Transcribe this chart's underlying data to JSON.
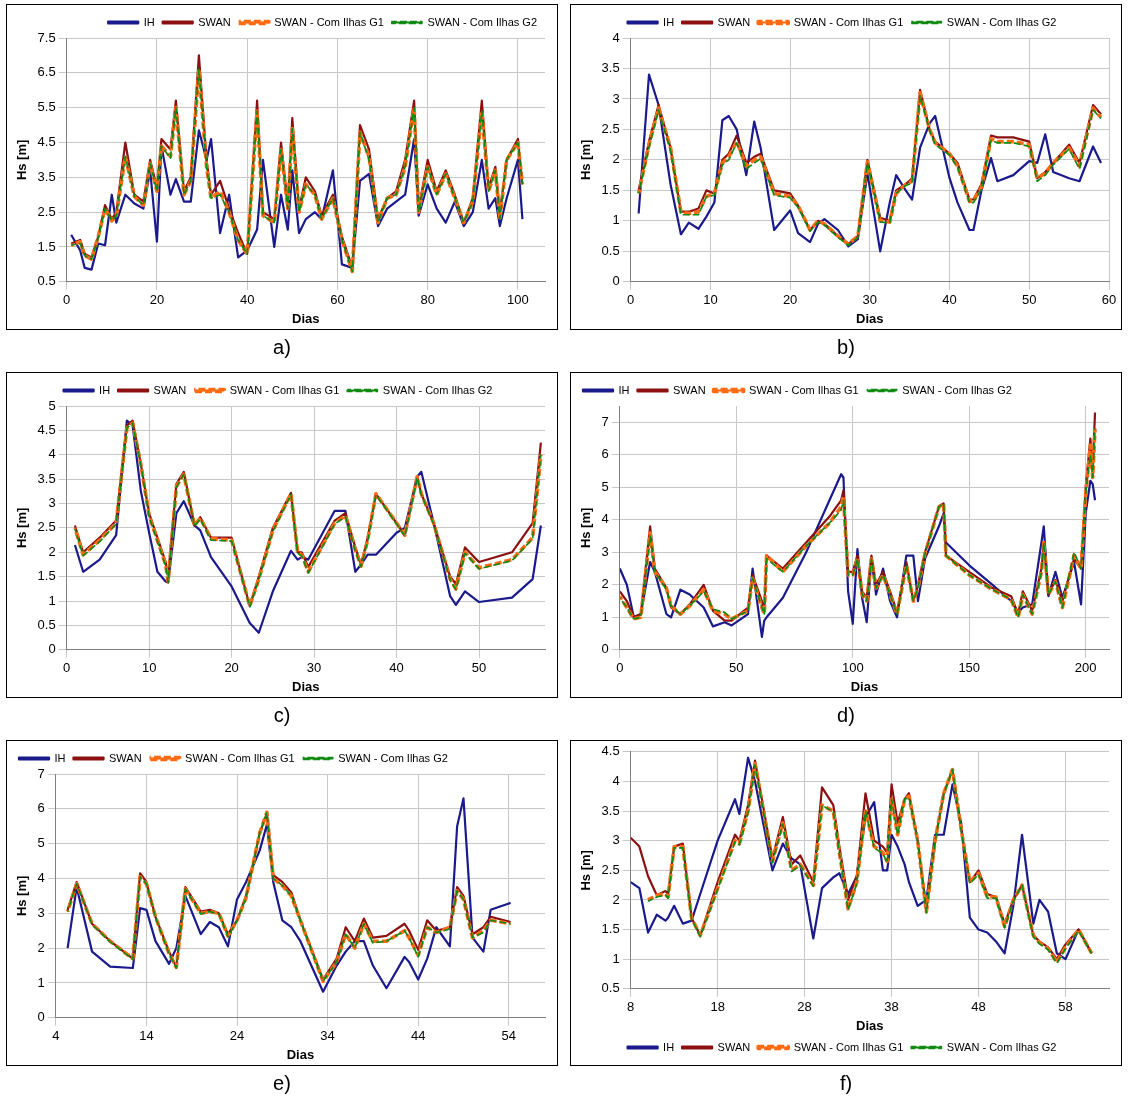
{
  "chart_data": [
    {
      "type": "line",
      "xlabel": "Dias",
      "ylabel": "Hs [m]",
      "annotations": [
        "a)"
      ],
      "legend": "top right",
      "grid": true,
      "marker": "none",
      "xlim": [
        0,
        106
      ],
      "xticks": [
        0,
        20,
        40,
        60,
        80,
        100
      ],
      "ylim": [
        0.5,
        7.5
      ],
      "yticks": [
        0.5,
        1.5,
        2.5,
        3.5,
        4.5,
        5.5,
        6.5,
        7.5
      ],
      "x": [
        1,
        3,
        4,
        5.5,
        7,
        8.5,
        10,
        11,
        13,
        15,
        17,
        18.5,
        20,
        21,
        23,
        24.2,
        26,
        27.5,
        29.3,
        31,
        32,
        34,
        36,
        38,
        40,
        42.2,
        43.5,
        46,
        47.5,
        49,
        50,
        51.5,
        53,
        55,
        56.5,
        59,
        61,
        63.3,
        65,
        67,
        69,
        71,
        73,
        75,
        77,
        78,
        80,
        82,
        84,
        86,
        88,
        90,
        92,
        93.5,
        95,
        96,
        97.5,
        100,
        101
      ],
      "series": [
        {
          "name": "IH",
          "color": "#1a1a8c",
          "line_style": "solid",
          "values": [
            1.85,
            1.4,
            0.9,
            0.85,
            1.6,
            1.55,
            3.0,
            2.2,
            3.0,
            2.75,
            2.6,
            3.7,
            1.65,
            4.4,
            3.0,
            3.45,
            2.8,
            2.8,
            4.85,
            4.0,
            4.6,
            1.9,
            3.0,
            1.2,
            1.4,
            2.0,
            4.0,
            1.5,
            3.0,
            2.0,
            3.7,
            1.9,
            2.3,
            2.5,
            2.3,
            3.7,
            1.0,
            0.9,
            3.4,
            3.6,
            2.1,
            2.6,
            2.8,
            3.0,
            4.6,
            2.4,
            3.3,
            2.6,
            2.2,
            2.8,
            2.1,
            2.5,
            4.0,
            2.6,
            2.9,
            2.1,
            2.9,
            4.0,
            2.3
          ]
        },
        {
          "name": "SWAN",
          "color": "#8b1010",
          "line_style": "solid",
          "values": [
            1.6,
            1.7,
            1.3,
            1.2,
            1.8,
            2.7,
            2.3,
            2.5,
            4.5,
            3.0,
            2.8,
            4.0,
            3.2,
            4.6,
            4.3,
            5.7,
            3.1,
            3.5,
            7.0,
            4.0,
            3.0,
            3.4,
            2.6,
            1.9,
            1.3,
            5.7,
            2.5,
            2.3,
            4.5,
            2.7,
            5.2,
            2.6,
            3.5,
            3.1,
            2.4,
            3.0,
            1.8,
            0.9,
            5.0,
            4.3,
            2.3,
            2.9,
            3.1,
            4.0,
            5.7,
            2.6,
            4.0,
            3.1,
            3.7,
            3.0,
            2.2,
            2.9,
            5.7,
            3.2,
            3.8,
            2.5,
            4.0,
            4.6,
            3.3
          ]
        },
        {
          "name": "SWAN - Com Ilhas G1",
          "color": "#ff6a13",
          "line_style": "dashed",
          "values": [
            1.55,
            1.65,
            1.25,
            1.15,
            1.8,
            2.6,
            2.25,
            2.4,
            4.1,
            2.95,
            2.7,
            3.9,
            3.1,
            4.4,
            4.1,
            5.5,
            3.0,
            3.4,
            6.6,
            3.8,
            2.9,
            3.1,
            2.5,
            1.7,
            1.3,
            5.4,
            2.4,
            2.2,
            4.3,
            2.6,
            4.9,
            2.5,
            3.3,
            3.0,
            2.3,
            2.9,
            1.7,
            0.8,
            4.8,
            4.1,
            2.2,
            2.9,
            3.0,
            3.8,
            5.5,
            2.5,
            3.8,
            3.0,
            3.6,
            2.9,
            2.2,
            2.8,
            5.4,
            3.1,
            3.7,
            2.3,
            4.0,
            4.5,
            3.3
          ]
        },
        {
          "name": "SWAN - Com Ilhas G2",
          "color": "#118a11",
          "line_style": "dashed",
          "values": [
            1.55,
            1.6,
            1.25,
            1.15,
            1.75,
            2.6,
            2.25,
            2.4,
            4.1,
            2.95,
            2.7,
            3.9,
            3.1,
            4.4,
            4.05,
            5.5,
            3.0,
            3.4,
            6.6,
            3.8,
            2.9,
            3.0,
            2.5,
            1.7,
            1.3,
            5.4,
            2.4,
            2.2,
            4.3,
            2.6,
            4.9,
            2.5,
            3.3,
            3.0,
            2.3,
            2.9,
            1.7,
            0.8,
            4.8,
            4.0,
            2.2,
            2.9,
            3.0,
            3.8,
            5.5,
            2.5,
            3.8,
            3.0,
            3.6,
            2.9,
            2.2,
            2.8,
            5.4,
            3.1,
            3.7,
            2.3,
            4.0,
            4.5,
            3.3
          ]
        }
      ]
    },
    {
      "type": "line",
      "xlabel": "Dias",
      "ylabel": "Hs [m]",
      "annotations": [
        "b)"
      ],
      "legend": "top",
      "grid": true,
      "marker": "none",
      "xlim": [
        0,
        60
      ],
      "xticks": [
        0,
        10,
        20,
        30,
        40,
        50,
        60
      ],
      "ylim": [
        0,
        4
      ],
      "yticks": [
        0,
        0.5,
        1,
        1.5,
        2,
        2.5,
        3,
        3.5,
        4
      ],
      "x": [
        1,
        2.3,
        3.5,
        5,
        6.3,
        7.3,
        8.5,
        9.5,
        10.5,
        11.5,
        12.3,
        13.3,
        14.5,
        15.5,
        16.3,
        18,
        20,
        21,
        22.5,
        23.5,
        24.3,
        26,
        27.3,
        28.5,
        29.7,
        31.3,
        32.5,
        33.3,
        34.5,
        35.3,
        36.3,
        37.5,
        38.2,
        40,
        41,
        42.5,
        43,
        44,
        45.2,
        46,
        48,
        50,
        51,
        52,
        53,
        55,
        56.3,
        58,
        59
      ],
      "series": [
        {
          "name": "IH",
          "color": "#1a1a8c",
          "line_style": "solid",
          "values": [
            1.12,
            3.4,
            2.9,
            1.6,
            0.78,
            0.97,
            0.87,
            1.07,
            1.3,
            2.65,
            2.72,
            2.5,
            1.75,
            2.63,
            2.2,
            0.85,
            1.17,
            0.8,
            0.65,
            0.95,
            1.03,
            0.85,
            0.58,
            0.7,
            1.78,
            0.5,
            1.3,
            1.75,
            1.5,
            1.35,
            2.2,
            2.6,
            2.72,
            1.7,
            1.3,
            0.85,
            0.85,
            1.5,
            2.03,
            1.65,
            1.75,
            1.98,
            1.95,
            2.42,
            1.8,
            1.7,
            1.65,
            2.22,
            1.95
          ]
        },
        {
          "name": "SWAN",
          "color": "#8b1010",
          "line_style": "solid",
          "values": [
            1.5,
            2.3,
            2.9,
            2.2,
            1.15,
            1.15,
            1.2,
            1.5,
            1.45,
            2.0,
            2.1,
            2.4,
            1.95,
            2.05,
            2.1,
            1.5,
            1.45,
            1.25,
            0.85,
            1.0,
            0.95,
            0.75,
            0.62,
            0.75,
            2.0,
            1.05,
            1.0,
            1.5,
            1.6,
            1.7,
            3.15,
            2.5,
            2.3,
            2.1,
            1.95,
            1.35,
            1.35,
            1.6,
            2.4,
            2.37,
            2.37,
            2.3,
            1.7,
            1.8,
            1.95,
            2.25,
            1.95,
            2.9,
            2.75
          ]
        },
        {
          "name": "SWAN - Com Ilhas G1",
          "color": "#ff6a13",
          "line_style": "dashed",
          "values": [
            1.45,
            2.25,
            2.85,
            2.2,
            1.15,
            1.12,
            1.15,
            1.4,
            1.45,
            1.95,
            2.05,
            2.3,
            1.9,
            2.0,
            2.05,
            1.45,
            1.4,
            1.25,
            0.85,
            1.0,
            0.95,
            0.75,
            0.62,
            0.75,
            1.97,
            1.0,
            0.98,
            1.45,
            1.6,
            1.65,
            3.1,
            2.5,
            2.28,
            2.1,
            1.9,
            1.32,
            1.33,
            1.55,
            2.35,
            2.3,
            2.3,
            2.25,
            1.7,
            1.78,
            1.95,
            2.2,
            1.9,
            2.85,
            2.7
          ]
        },
        {
          "name": "SWAN - Com Ilhas G2",
          "color": "#118a11",
          "line_style": "dashed",
          "values": [
            1.45,
            2.2,
            2.82,
            2.15,
            1.1,
            1.1,
            1.1,
            1.4,
            1.42,
            1.92,
            2.0,
            2.28,
            1.85,
            1.95,
            2.02,
            1.42,
            1.38,
            1.22,
            0.83,
            0.98,
            0.93,
            0.73,
            0.6,
            0.73,
            1.95,
            0.98,
            0.97,
            1.45,
            1.58,
            1.62,
            3.05,
            2.48,
            2.25,
            2.08,
            1.88,
            1.3,
            1.3,
            1.52,
            2.32,
            2.28,
            2.28,
            2.22,
            1.65,
            1.75,
            1.92,
            2.18,
            1.85,
            2.82,
            2.68
          ]
        }
      ]
    },
    {
      "type": "line",
      "xlabel": "Dias",
      "ylabel": "Hs [m]",
      "annotations": [
        "c)"
      ],
      "legend": "top",
      "grid": true,
      "marker": "none",
      "xlim": [
        0,
        58
      ],
      "xticks": [
        0,
        10,
        20,
        30,
        40,
        50
      ],
      "ylim": [
        0,
        5
      ],
      "yticks": [
        0,
        0.5,
        1,
        1.5,
        2,
        2.5,
        3,
        3.5,
        4,
        4.5,
        5
      ],
      "x": [
        1,
        2,
        4,
        6,
        7.3,
        8,
        9,
        10,
        11,
        12,
        12.3,
        13.3,
        14.2,
        15.5,
        16.2,
        17.5,
        20,
        22.2,
        23.3,
        25,
        27.2,
        28,
        28.5,
        29.3,
        32.5,
        33.8,
        35,
        35.7,
        36.5,
        37.5,
        40,
        41,
        42.5,
        43,
        44.5,
        46.5,
        47.2,
        48.3,
        50,
        54,
        56.5,
        57.5
      ],
      "series": [
        {
          "name": "IH",
          "color": "#1a1a8c",
          "line_style": "solid",
          "values": [
            2.15,
            1.6,
            1.85,
            2.35,
            4.7,
            4.6,
            3.25,
            2.4,
            1.6,
            1.4,
            1.38,
            2.8,
            3.05,
            2.55,
            2.45,
            1.9,
            1.3,
            0.55,
            0.35,
            1.2,
            2.03,
            1.85,
            1.9,
            1.85,
            2.85,
            2.85,
            1.6,
            1.75,
            1.95,
            1.95,
            2.4,
            2.5,
            3.55,
            3.65,
            2.6,
            1.1,
            0.92,
            1.2,
            0.98,
            1.07,
            1.45,
            2.55
          ]
        },
        {
          "name": "SWAN",
          "color": "#8b1010",
          "line_style": "solid",
          "values": [
            2.55,
            2.0,
            2.3,
            2.65,
            4.6,
            4.7,
            3.8,
            2.8,
            2.3,
            1.8,
            1.5,
            3.4,
            3.65,
            2.55,
            2.72,
            2.3,
            2.3,
            0.9,
            1.5,
            2.5,
            3.22,
            2.0,
            2.0,
            1.7,
            2.65,
            2.8,
            2.1,
            1.75,
            2.3,
            3.2,
            2.6,
            2.35,
            3.55,
            3.2,
            2.6,
            1.5,
            1.35,
            2.1,
            1.8,
            2.0,
            2.6,
            4.25
          ]
        },
        {
          "name": "SWAN - Com Ilhas G1",
          "color": "#ff6a13",
          "line_style": "dashed",
          "values": [
            2.5,
            1.95,
            2.25,
            2.6,
            4.55,
            4.65,
            3.8,
            2.75,
            2.25,
            1.75,
            1.4,
            3.35,
            3.6,
            2.55,
            2.7,
            2.28,
            2.25,
            0.9,
            1.45,
            2.45,
            3.2,
            2.0,
            1.95,
            1.6,
            2.6,
            2.75,
            2.05,
            1.72,
            2.25,
            3.2,
            2.6,
            2.35,
            3.55,
            3.2,
            2.6,
            1.45,
            1.25,
            2.0,
            1.68,
            1.85,
            2.3,
            4.0
          ]
        },
        {
          "name": "SWAN - Com Ilhas G2",
          "color": "#118a11",
          "line_style": "dashed",
          "values": [
            2.48,
            1.93,
            2.22,
            2.58,
            4.55,
            4.65,
            3.78,
            2.73,
            2.22,
            1.72,
            1.38,
            3.33,
            3.6,
            2.53,
            2.68,
            2.25,
            2.23,
            0.88,
            1.43,
            2.43,
            3.18,
            1.98,
            1.93,
            1.58,
            2.58,
            2.73,
            2.03,
            1.7,
            2.23,
            3.18,
            2.58,
            2.33,
            3.53,
            3.18,
            2.58,
            1.43,
            1.23,
            1.98,
            1.66,
            1.83,
            2.28,
            4.0
          ]
        }
      ]
    },
    {
      "type": "line",
      "xlabel": "Dias",
      "ylabel": "Hs [m]",
      "annotations": [
        "d)"
      ],
      "legend": "top left",
      "grid": true,
      "marker": "none",
      "xlim": [
        0,
        210
      ],
      "xticks": [
        0,
        50,
        100,
        150,
        200
      ],
      "ylim": [
        0,
        7.5
      ],
      "yticks": [
        0,
        1,
        2,
        3,
        4,
        5,
        6,
        7
      ],
      "x": [
        0,
        3,
        6,
        9,
        13,
        15,
        20,
        22,
        26,
        30,
        36,
        40,
        45,
        48,
        55,
        57,
        61,
        62,
        63,
        70,
        80,
        90,
        95,
        96,
        98,
        100,
        102,
        104,
        106,
        108,
        110,
        113,
        116,
        119,
        123,
        126,
        128,
        131,
        137,
        139,
        140,
        150,
        160,
        168,
        171,
        173,
        177,
        181,
        182,
        184,
        187,
        190,
        195,
        198,
        200,
        202,
        203,
        204
      ],
      "series": [
        {
          "name": "IH",
          "color": "#1a1a8c",
          "line_style": "solid",
          "values": [
            2.5,
            2.0,
            1.0,
            1.1,
            2.7,
            2.4,
            1.1,
            1.0,
            1.85,
            1.7,
            1.3,
            0.72,
            0.85,
            0.75,
            1.1,
            2.5,
            0.4,
            0.9,
            1.0,
            1.6,
            3.0,
            4.6,
            5.4,
            5.3,
            1.8,
            0.8,
            3.1,
            1.6,
            0.85,
            2.8,
            1.7,
            2.5,
            1.5,
            1.0,
            2.9,
            2.9,
            1.5,
            2.8,
            3.8,
            4.2,
            3.3,
            2.6,
            2.0,
            1.5,
            1.15,
            1.3,
            1.4,
            3.3,
            3.8,
            1.65,
            2.4,
            1.6,
            2.7,
            1.4,
            4.2,
            5.2,
            5.1,
            4.6
          ]
        },
        {
          "name": "SWAN",
          "color": "#8b1010",
          "line_style": "solid",
          "values": [
            1.8,
            1.5,
            1.0,
            1.1,
            3.8,
            2.5,
            1.9,
            1.3,
            1.1,
            1.4,
            2.0,
            1.2,
            0.9,
            0.9,
            1.3,
            2.3,
            1.5,
            1.2,
            2.9,
            2.5,
            3.3,
            4.1,
            4.6,
            4.9,
            2.4,
            2.4,
            2.9,
            1.8,
            1.6,
            2.9,
            2.0,
            2.4,
            1.8,
            1.15,
            2.7,
            1.5,
            2.0,
            3.0,
            4.4,
            4.5,
            2.9,
            2.4,
            1.9,
            1.65,
            1.1,
            1.8,
            1.2,
            2.5,
            3.2,
            1.7,
            2.15,
            1.5,
            2.8,
            2.5,
            5.0,
            6.5,
            5.6,
            7.3
          ]
        },
        {
          "name": "SWAN - Com Ilhas G1",
          "color": "#ff6a13",
          "line_style": "dashed",
          "values": [
            1.65,
            1.3,
            0.95,
            1.0,
            3.6,
            2.4,
            1.9,
            1.35,
            1.1,
            1.35,
            1.85,
            1.2,
            1.1,
            0.95,
            1.2,
            2.2,
            1.3,
            1.1,
            2.9,
            2.4,
            3.2,
            3.9,
            4.4,
            4.7,
            2.3,
            2.3,
            2.8,
            1.7,
            1.5,
            2.8,
            1.9,
            2.3,
            1.7,
            1.1,
            2.6,
            1.5,
            1.9,
            2.95,
            4.4,
            4.5,
            2.9,
            2.3,
            1.85,
            1.55,
            1.0,
            1.7,
            1.1,
            2.4,
            3.3,
            1.7,
            2.1,
            1.3,
            2.9,
            2.5,
            4.8,
            6.3,
            5.3,
            6.8
          ]
        },
        {
          "name": "SWAN - Com Ilhas G2",
          "color": "#118a11",
          "line_style": "dashed",
          "values": [
            1.6,
            1.3,
            0.95,
            1.0,
            3.5,
            2.4,
            1.85,
            1.35,
            1.1,
            1.35,
            1.8,
            1.25,
            1.15,
            0.95,
            1.2,
            2.2,
            1.3,
            1.1,
            2.8,
            2.4,
            3.2,
            3.9,
            4.3,
            4.6,
            2.3,
            2.3,
            2.8,
            1.7,
            1.5,
            2.8,
            1.9,
            2.3,
            1.7,
            1.1,
            2.6,
            1.5,
            1.9,
            2.95,
            4.4,
            4.5,
            2.9,
            2.3,
            1.85,
            1.55,
            1.0,
            1.7,
            1.1,
            2.4,
            3.3,
            1.7,
            2.1,
            1.3,
            3.0,
            2.5,
            4.8,
            6.0,
            5.3,
            6.8
          ]
        }
      ]
    },
    {
      "type": "line",
      "xlabel": "Dias",
      "ylabel": "Hs [m]",
      "annotations": [
        "e)"
      ],
      "legend": "top left",
      "grid": true,
      "marker": "none",
      "xlim": [
        4,
        58
      ],
      "xticks": [
        4,
        14,
        24,
        34,
        44,
        54
      ],
      "ylim": [
        0,
        7
      ],
      "yticks": [
        0,
        1,
        2,
        3,
        4,
        5,
        6,
        7
      ],
      "x": [
        5.3,
        6.3,
        8,
        10,
        12.5,
        13.3,
        14,
        15,
        16.5,
        17.3,
        18.3,
        20,
        21,
        22,
        23,
        24,
        25,
        26.5,
        27.3,
        28,
        29,
        30,
        31,
        33.5,
        35,
        36,
        37,
        38,
        39,
        40.5,
        42.5,
        43,
        44,
        45,
        46,
        47.5,
        48.3,
        49,
        50,
        51.2,
        52,
        54.2
      ],
      "series": [
        {
          "name": "IH",
          "color": "#1a1a8c",
          "line_style": "solid",
          "values": [
            2.0,
            3.75,
            1.9,
            1.47,
            1.43,
            3.15,
            3.1,
            2.2,
            1.55,
            2.0,
            3.5,
            2.4,
            2.75,
            2.6,
            2.05,
            3.4,
            3.9,
            4.8,
            5.55,
            3.9,
            2.8,
            2.6,
            2.2,
            0.75,
            1.5,
            1.9,
            2.2,
            2.2,
            1.5,
            0.85,
            1.75,
            1.6,
            1.1,
            1.7,
            2.6,
            2.05,
            5.5,
            6.3,
            2.3,
            1.9,
            3.1,
            3.3
          ]
        },
        {
          "name": "SWAN",
          "color": "#8b1010",
          "line_style": "solid",
          "values": [
            3.1,
            3.9,
            2.7,
            2.2,
            1.7,
            4.15,
            3.9,
            2.9,
            1.9,
            1.45,
            3.75,
            3.05,
            3.1,
            3.0,
            2.4,
            2.8,
            3.5,
            5.3,
            5.85,
            4.1,
            3.9,
            3.6,
            2.8,
            1.1,
            1.7,
            2.6,
            2.2,
            2.85,
            2.3,
            2.35,
            2.7,
            2.5,
            1.95,
            2.8,
            2.5,
            2.6,
            3.75,
            3.5,
            2.4,
            2.6,
            2.9,
            2.75
          ]
        },
        {
          "name": "SWAN - Com Ilhas G1",
          "color": "#ff6a13",
          "line_style": "dashed",
          "values": [
            3.05,
            3.85,
            2.7,
            2.2,
            1.7,
            4.05,
            3.85,
            2.9,
            1.85,
            1.45,
            3.7,
            3.0,
            3.05,
            3.0,
            2.35,
            2.8,
            3.45,
            5.3,
            5.9,
            4.0,
            3.8,
            3.5,
            2.8,
            1.05,
            1.6,
            2.4,
            2.0,
            2.7,
            2.2,
            2.2,
            2.5,
            2.3,
            1.8,
            2.6,
            2.45,
            2.6,
            3.65,
            3.4,
            2.3,
            2.5,
            2.8,
            2.7
          ]
        },
        {
          "name": "SWAN - Com Ilhas G2",
          "color": "#118a11",
          "line_style": "dashed",
          "values": [
            3.05,
            3.85,
            2.68,
            2.18,
            1.68,
            4.05,
            3.85,
            2.88,
            1.83,
            1.43,
            3.7,
            2.98,
            3.05,
            2.98,
            2.33,
            2.78,
            3.45,
            5.3,
            5.9,
            4.0,
            3.8,
            3.5,
            2.78,
            1.05,
            1.6,
            2.4,
            2.0,
            2.7,
            2.15,
            2.2,
            2.5,
            2.3,
            1.75,
            2.6,
            2.45,
            2.55,
            3.65,
            3.4,
            2.3,
            2.45,
            2.8,
            2.7
          ]
        }
      ]
    },
    {
      "type": "line",
      "xlabel": "Dias",
      "ylabel": "Hs [m]",
      "annotations": [
        "f)"
      ],
      "legend": "bottom",
      "grid": true,
      "marker": "none",
      "xlim": [
        8,
        63
      ],
      "xticks": [
        8,
        18,
        28,
        38,
        48,
        58
      ],
      "ylim": [
        0.5,
        4.5
      ],
      "yticks": [
        0.5,
        1,
        1.5,
        2,
        2.5,
        3,
        3.5,
        4,
        4.5
      ],
      "x": [
        8,
        9,
        10,
        11,
        12,
        12.3,
        13,
        14,
        15,
        16,
        18,
        20,
        20.5,
        21.5,
        22.3,
        24.3,
        25.5,
        26.5,
        27.5,
        29,
        30,
        31.3,
        32,
        33,
        34,
        35,
        36,
        37,
        37.5,
        38,
        38.7,
        39.5,
        40,
        41,
        42,
        43,
        44,
        45,
        46,
        47,
        48,
        49,
        50,
        51,
        52,
        53,
        54.3,
        55,
        56,
        57,
        58,
        59.5,
        61
      ],
      "series": [
        {
          "name": "IH",
          "color": "#1a1a8c",
          "line_style": "solid",
          "values": [
            2.3,
            2.2,
            1.45,
            1.75,
            1.65,
            1.7,
            1.9,
            1.6,
            1.65,
            2.1,
            3.0,
            3.7,
            3.45,
            4.4,
            4.0,
            2.5,
            2.95,
            2.7,
            2.6,
            1.35,
            2.2,
            2.38,
            2.45,
            2.1,
            2.4,
            3.4,
            3.65,
            2.5,
            2.5,
            3.1,
            2.9,
            2.6,
            2.3,
            1.9,
            2.0,
            3.1,
            3.1,
            3.95,
            3.3,
            1.7,
            1.5,
            1.45,
            1.3,
            1.1,
            1.9,
            3.1,
            1.6,
            2.0,
            1.8,
            1.1,
            1.0,
            1.5,
            1.1
          ]
        },
        {
          "name": "SWAN",
          "color": "#8b1010",
          "line_style": "solid",
          "values": [
            3.05,
            2.9,
            2.4,
            2.08,
            2.15,
            2.1,
            2.9,
            2.95,
            1.7,
            1.4,
            2.3,
            3.1,
            3.0,
            3.6,
            4.35,
            2.7,
            3.4,
            2.6,
            2.75,
            2.3,
            3.9,
            3.6,
            2.9,
            2.0,
            2.4,
            3.8,
            3.0,
            2.9,
            2.8,
            3.95,
            3.3,
            3.7,
            3.8,
            3.0,
            1.85,
            3.0,
            3.8,
            4.2,
            3.2,
            2.3,
            2.5,
            2.1,
            2.05,
            1.6,
            2.0,
            2.25,
            1.4,
            1.3,
            1.2,
            1.0,
            1.25,
            1.5,
            1.1
          ]
        },
        {
          "name": "SWAN - Com Ilhas G1",
          "color": "#ff6a13",
          "line_style": "dashed",
          "values": [
            null,
            null,
            2.0,
            2.08,
            2.1,
            2.05,
            2.9,
            2.9,
            1.7,
            1.4,
            2.2,
            3.0,
            2.95,
            3.5,
            4.3,
            2.65,
            3.3,
            2.5,
            2.6,
            2.25,
            3.6,
            3.5,
            2.8,
            1.85,
            2.3,
            3.5,
            2.9,
            2.8,
            2.65,
            3.7,
            3.1,
            3.7,
            3.75,
            3.0,
            1.8,
            3.0,
            3.8,
            4.2,
            3.2,
            2.3,
            2.45,
            2.05,
            2.05,
            1.55,
            2.0,
            2.25,
            1.4,
            1.28,
            1.18,
            0.95,
            1.2,
            1.5,
            1.1
          ]
        },
        {
          "name": "SWAN - Com Ilhas G2",
          "color": "#118a11",
          "line_style": "dashed",
          "values": [
            null,
            null,
            1.98,
            2.05,
            2.08,
            2.03,
            2.88,
            2.88,
            1.68,
            1.38,
            2.18,
            2.98,
            2.93,
            3.48,
            4.28,
            2.63,
            3.28,
            2.48,
            2.58,
            2.23,
            3.6,
            3.48,
            2.78,
            1.83,
            2.28,
            3.5,
            2.88,
            2.78,
            2.63,
            3.7,
            3.1,
            3.7,
            3.73,
            2.98,
            1.78,
            2.98,
            3.78,
            4.2,
            3.18,
            2.28,
            2.43,
            2.03,
            2.03,
            1.53,
            1.98,
            2.25,
            1.38,
            1.26,
            1.16,
            0.93,
            1.18,
            1.48,
            1.1
          ]
        }
      ]
    }
  ]
}
